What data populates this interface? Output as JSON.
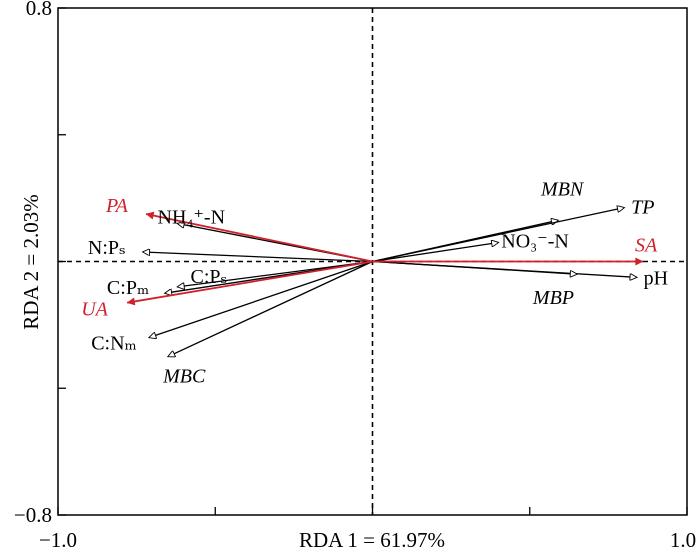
{
  "chart_data": {
    "type": "biplot",
    "xlabel": "RDA 1 = 61.97%",
    "ylabel": "RDA 2 = 2.03%",
    "xlim": [
      -1.0,
      1.0
    ],
    "ylim": [
      -0.8,
      0.8
    ],
    "xticks": [
      -1.0,
      -0.5,
      0.0,
      0.5,
      1.0
    ],
    "yticks": [
      -0.8,
      -0.4,
      0.0,
      0.4,
      0.8
    ],
    "x_tick_labels": [
      "−1.0",
      "1.0"
    ],
    "y_tick_labels": [
      "0.8",
      "−0.8"
    ],
    "zero_lines": "dashed",
    "colors": {
      "response": "#d0202a",
      "explanatory": "#000000"
    },
    "response_vectors": [
      {
        "label": "PA",
        "x": -0.72,
        "y": 0.15
      },
      {
        "label": "UA",
        "x": -0.78,
        "y": -0.13
      },
      {
        "label": "SA",
        "x": 0.86,
        "y": 0.0
      }
    ],
    "explanatory_vectors": [
      {
        "label": "MBN",
        "x": 0.59,
        "y": 0.13
      },
      {
        "label": "TP",
        "x": 0.8,
        "y": 0.17
      },
      {
        "label": "NO₃⁻-N",
        "x": 0.4,
        "y": 0.06
      },
      {
        "label": "pH",
        "x": 0.84,
        "y": -0.05
      },
      {
        "label": "MBP",
        "x": 0.65,
        "y": -0.04
      },
      {
        "label": "NH₄⁺-N",
        "x": -0.62,
        "y": 0.12
      },
      {
        "label": "N:Pₛ",
        "x": -0.73,
        "y": 0.03
      },
      {
        "label": "C:Pₘ",
        "x": -0.66,
        "y": -0.1
      },
      {
        "label": "C:Pₛ",
        "x": -0.62,
        "y": -0.08
      },
      {
        "label": "C:Nₘ",
        "x": -0.71,
        "y": -0.24
      },
      {
        "label": "MBC",
        "x": -0.65,
        "y": -0.3
      }
    ]
  }
}
